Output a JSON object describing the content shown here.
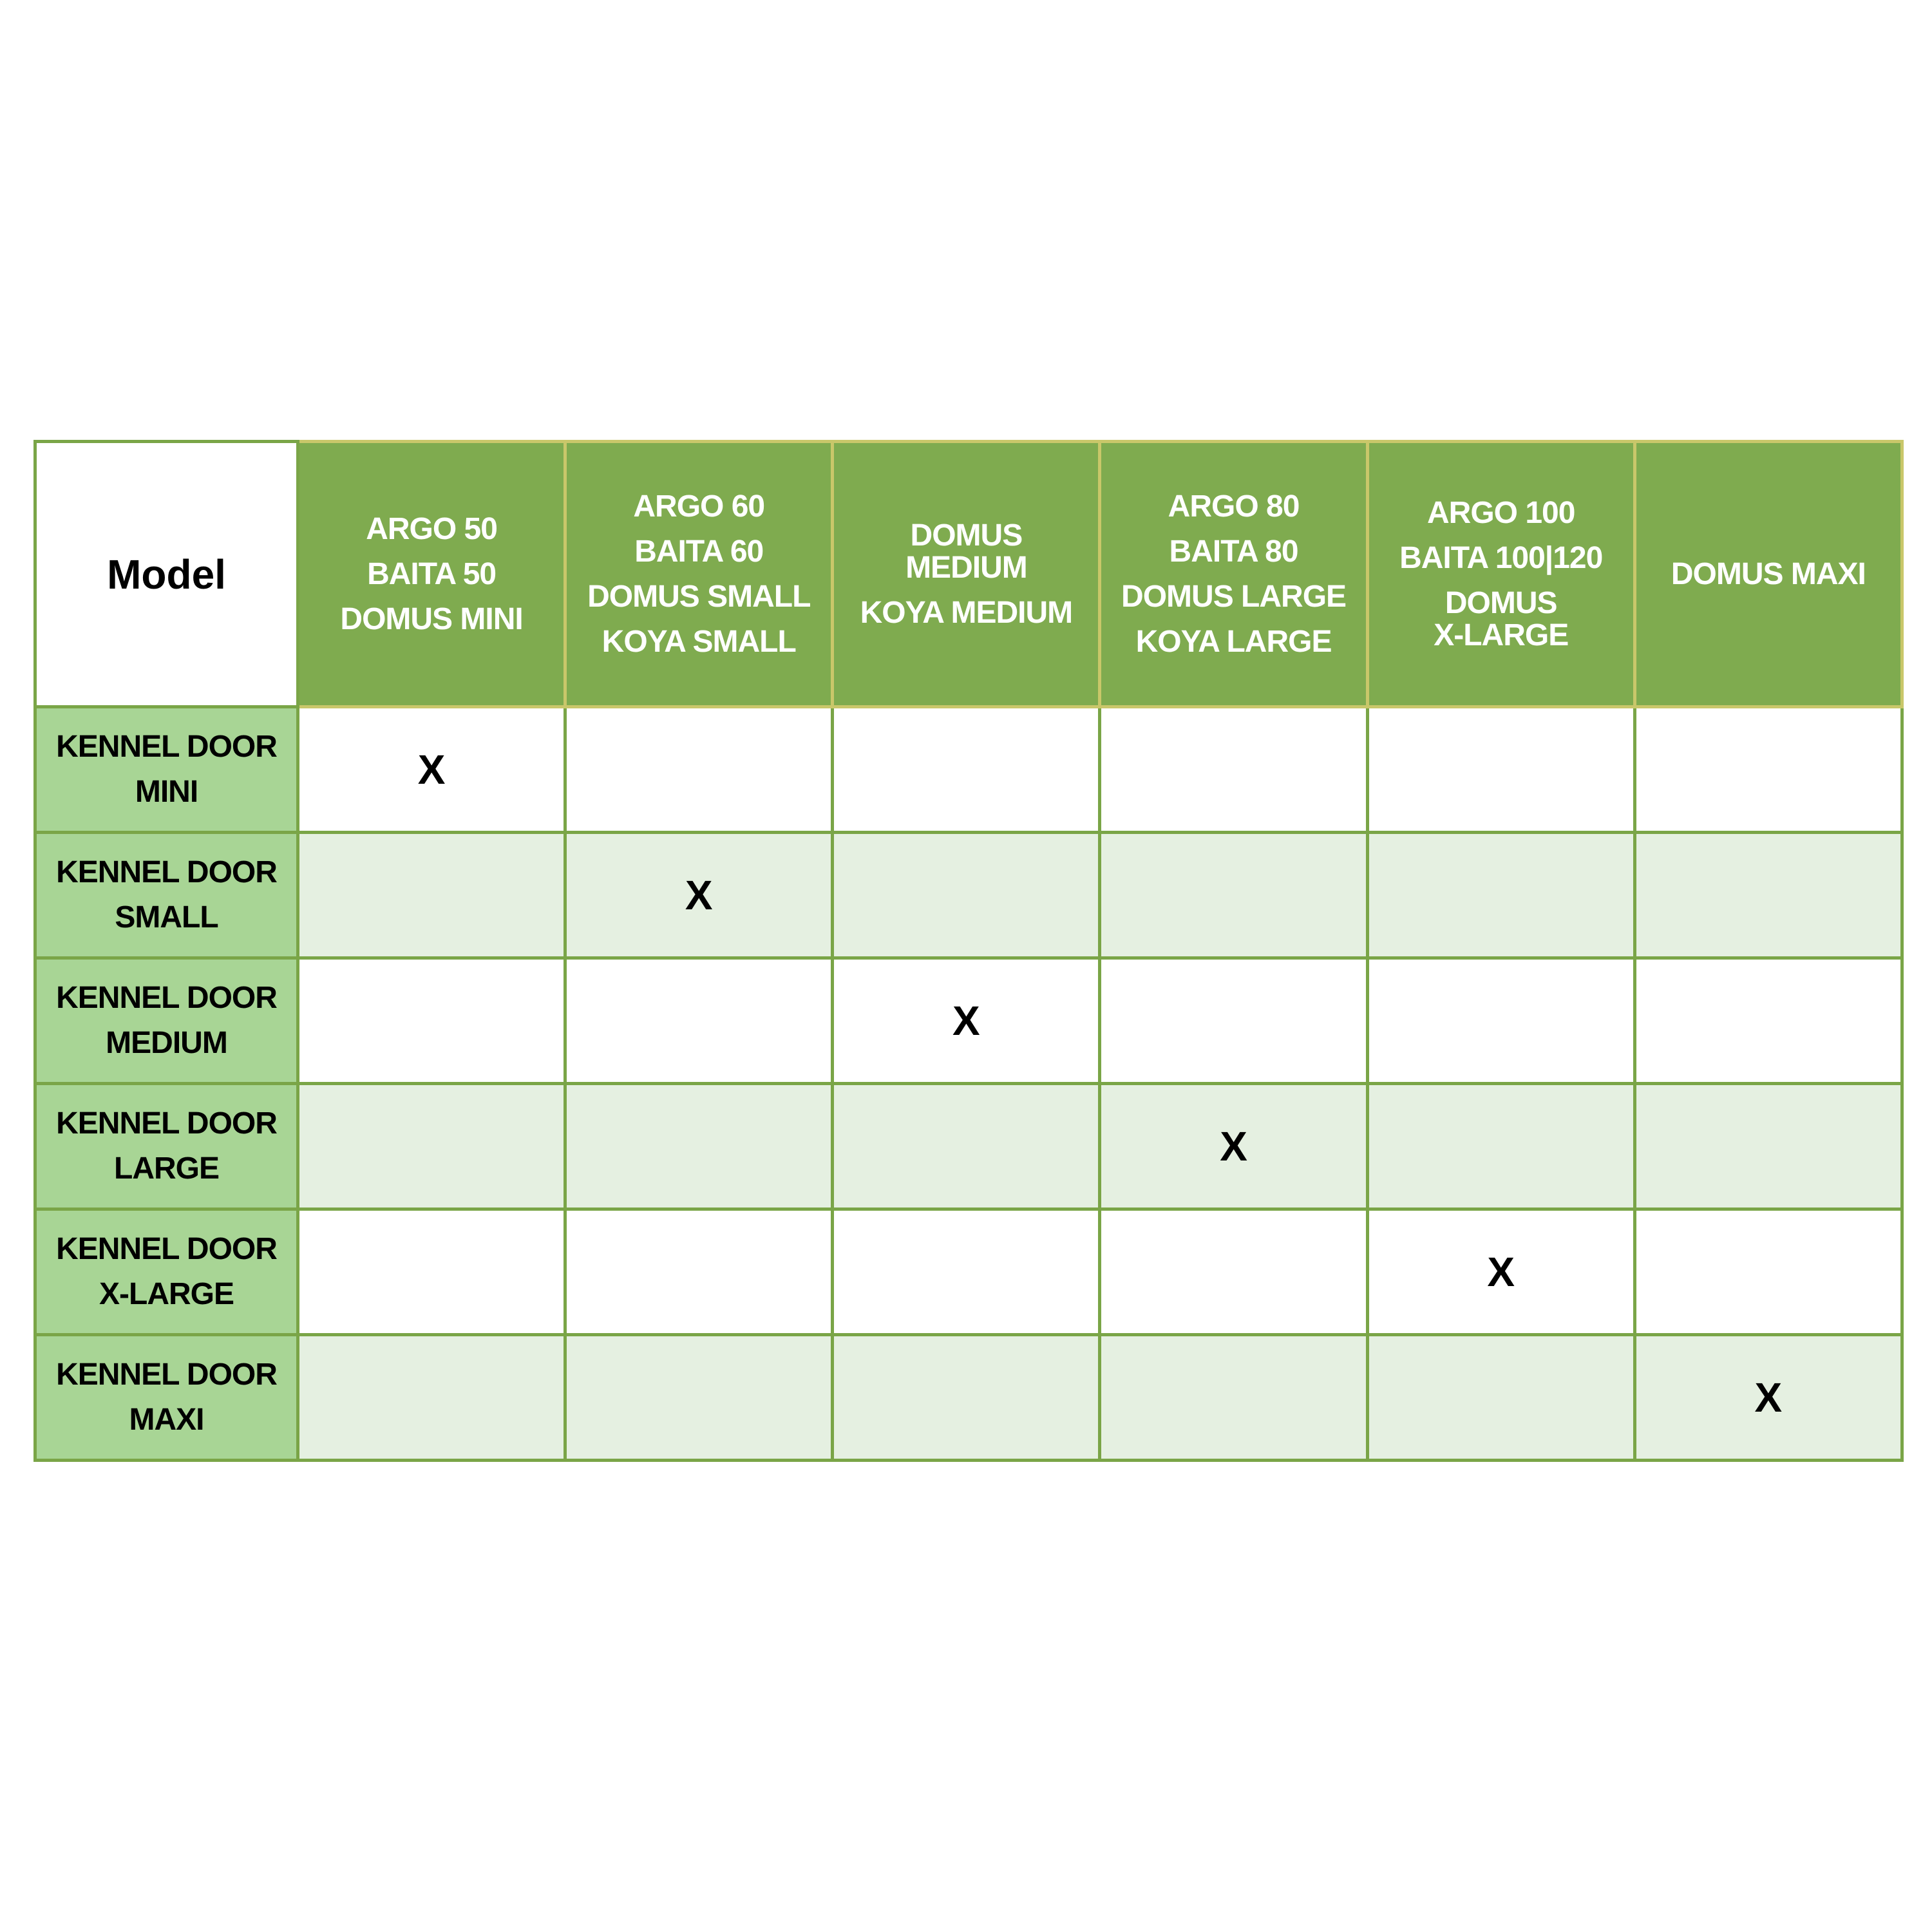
{
  "table": {
    "corner_label": "Model",
    "columns": [
      {
        "items": [
          "ARGO 50",
          "BAITA 50",
          "DOMUS MINI"
        ]
      },
      {
        "items": [
          "ARGO 60",
          "BAITA 60",
          "DOMUS SMALL",
          "KOYA SMALL"
        ]
      },
      {
        "items": [
          "DOMUS\nMEDIUM",
          "KOYA MEDIUM"
        ]
      },
      {
        "items": [
          "ARGO 80",
          "BAITA 80",
          "DOMUS LARGE",
          "KOYA LARGE"
        ]
      },
      {
        "items": [
          "ARGO 100",
          "BAITA 100|120",
          "DOMUS\nX-LARGE"
        ]
      },
      {
        "items": [
          "DOMUS MAXI"
        ]
      }
    ],
    "rows": [
      {
        "label": "KENNEL DOOR\nMINI",
        "cells": [
          "X",
          "",
          "",
          "",
          "",
          ""
        ]
      },
      {
        "label": "KENNEL DOOR\nSMALL",
        "cells": [
          "",
          "X",
          "",
          "",
          "",
          ""
        ]
      },
      {
        "label": "KENNEL DOOR\nMEDIUM",
        "cells": [
          "",
          "",
          "X",
          "",
          "",
          ""
        ]
      },
      {
        "label": "KENNEL DOOR\nLARGE",
        "cells": [
          "",
          "",
          "",
          "X",
          "",
          ""
        ]
      },
      {
        "label": "KENNEL DOOR\nX-LARGE",
        "cells": [
          "",
          "",
          "",
          "",
          "X",
          ""
        ]
      },
      {
        "label": "KENNEL DOOR\nMAXI",
        "cells": [
          "",
          "",
          "",
          "",
          "",
          "X"
        ]
      }
    ]
  },
  "colors": {
    "header_bg": "#7fab4f",
    "row_label_bg": "#a8d595",
    "alt_row_bg": "#e5f0e1",
    "border": "#7aa547"
  }
}
